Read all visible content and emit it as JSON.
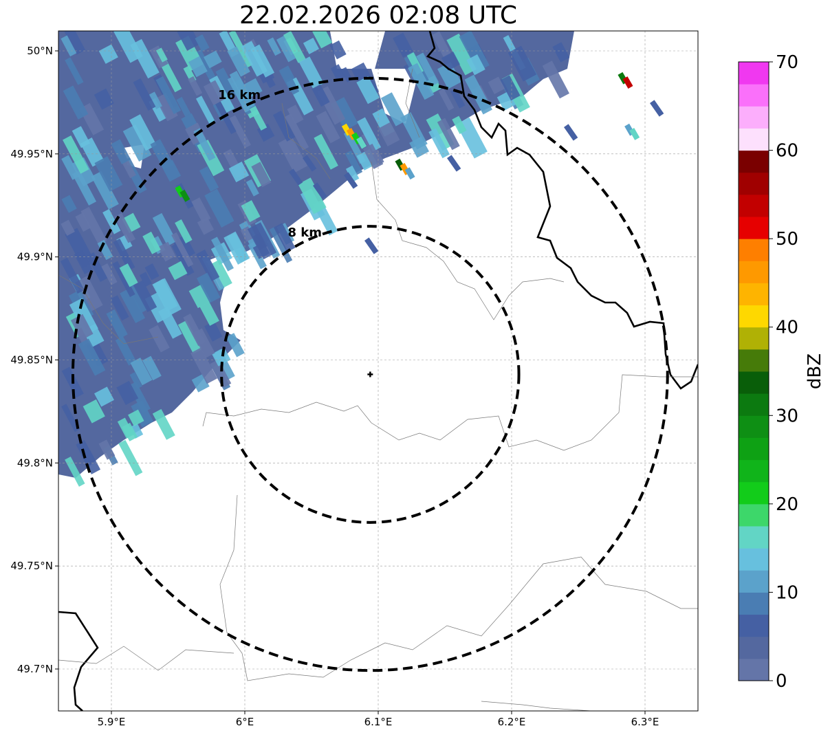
{
  "title": "22.02.2026 02:08 UTC",
  "map": {
    "lon_range": [
      5.86,
      6.34
    ],
    "lat_range": [
      49.68,
      50.01
    ],
    "lon_ticks": [
      {
        "value": 5.9,
        "label": "5.9°E"
      },
      {
        "value": 6.0,
        "label": "6°E"
      },
      {
        "value": 6.1,
        "label": "6.1°E"
      },
      {
        "value": 6.2,
        "label": "6.2°E"
      },
      {
        "value": 6.3,
        "label": "6.3°E"
      }
    ],
    "lat_ticks": [
      {
        "value": 50.0,
        "label": "50°N"
      },
      {
        "value": 49.95,
        "label": "49.95°N"
      },
      {
        "value": 49.9,
        "label": "49.9°N"
      },
      {
        "value": 49.85,
        "label": "49.85°N"
      },
      {
        "value": 49.8,
        "label": "49.8°N"
      },
      {
        "value": 49.75,
        "label": "49.75°N"
      },
      {
        "value": 49.7,
        "label": "49.7°N"
      }
    ],
    "radar_site": {
      "lon": 6.094,
      "lat": 49.843
    },
    "range_rings": [
      {
        "label": "8 km",
        "radius_km": 8
      },
      {
        "label": "16 km",
        "radius_km": 16
      }
    ],
    "grid": true
  },
  "colorbar": {
    "label": "dBZ",
    "ticks": [
      "0",
      "10",
      "20",
      "30",
      "40",
      "50",
      "60",
      "70"
    ],
    "min": 0,
    "max": 70,
    "step": 2.5,
    "colors": [
      "#6475a8",
      "#54689f",
      "#4560a3",
      "#4a7db3",
      "#5ba2cb",
      "#67c0de",
      "#62d5c5",
      "#3dd76a",
      "#12cc1a",
      "#10b41a",
      "#0ea114",
      "#0e8f14",
      "#0c7a10",
      "#095e09",
      "#467b09",
      "#b0b105",
      "#fed800",
      "#feb400",
      "#fe9900",
      "#fe7f00",
      "#e60000",
      "#c20000",
      "#a00000",
      "#7a0000",
      "#fde0fd",
      "#fcaefc",
      "#fa70fa",
      "#f038f0"
    ]
  },
  "echoes": {
    "background_color": "#54689f",
    "fleck_colors": [
      "#4560a3",
      "#5ba2cb",
      "#4a7db3",
      "#67c0de",
      "#62d5c5",
      "#6475a8"
    ],
    "cells": [
      {
        "lon": 6.078,
        "lat": 49.96,
        "colors": [
          "#fed800",
          "#fe9900",
          "#12cc1a",
          "#62d5c5"
        ]
      },
      {
        "lon": 6.118,
        "lat": 49.943,
        "colors": [
          "#095e09",
          "#fe9900",
          "#5ba2cb"
        ]
      },
      {
        "lon": 5.953,
        "lat": 49.93,
        "colors": [
          "#12cc1a",
          "#0e8f14"
        ]
      },
      {
        "lon": 6.285,
        "lat": 49.985,
        "colors": [
          "#0c7a10",
          "#c20000"
        ]
      },
      {
        "lon": 6.29,
        "lat": 49.96,
        "colors": [
          "#5ba2cb",
          "#62d5c5"
        ]
      }
    ]
  }
}
